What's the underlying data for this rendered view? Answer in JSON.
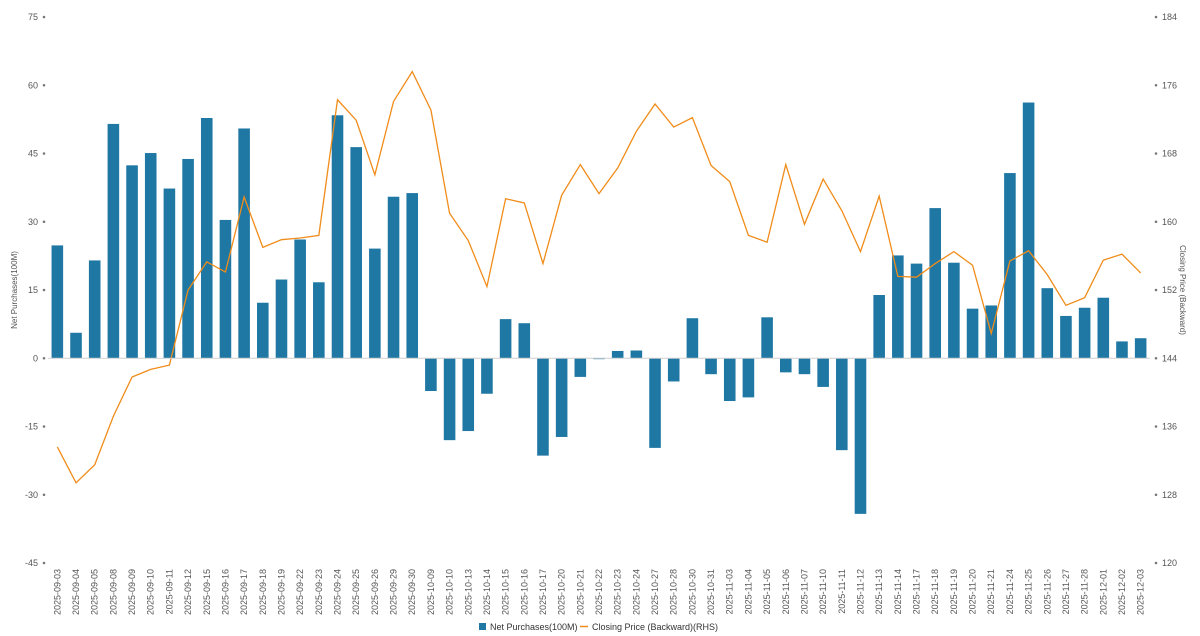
{
  "chart_data": {
    "type": "bar+line",
    "title": "",
    "ylabel_left": "Net Purchases(100M)",
    "ylabel_right": "Closing Price (Backward)",
    "ylim_left": [
      -45,
      75
    ],
    "yticks_left": [
      -45,
      -30,
      -15,
      0,
      15,
      30,
      45,
      60,
      75
    ],
    "ylim_right": [
      120,
      184
    ],
    "yticks_right": [
      120,
      128,
      136,
      144,
      152,
      160,
      168,
      176,
      184
    ],
    "categories": [
      "2025-09-03",
      "2025-09-04",
      "2025-09-05",
      "2025-09-08",
      "2025-09-09",
      "2025-09-10",
      "2025-09-11",
      "2025-09-12",
      "2025-09-15",
      "2025-09-16",
      "2025-09-17",
      "2025-09-18",
      "2025-09-19",
      "2025-09-22",
      "2025-09-23",
      "2025-09-24",
      "2025-09-25",
      "2025-09-26",
      "2025-09-29",
      "2025-09-30",
      "2025-10-09",
      "2025-10-10",
      "2025-10-13",
      "2025-10-14",
      "2025-10-15",
      "2025-10-16",
      "2025-10-17",
      "2025-10-20",
      "2025-10-21",
      "2025-10-22",
      "2025-10-23",
      "2025-10-24",
      "2025-10-27",
      "2025-10-28",
      "2025-10-30",
      "2025-10-31",
      "2025-11-03",
      "2025-11-04",
      "2025-11-05",
      "2025-11-06",
      "2025-11-07",
      "2025-11-10",
      "2025-11-11",
      "2025-11-12",
      "2025-11-13",
      "2025-11-14",
      "2025-11-17",
      "2025-11-18",
      "2025-11-19",
      "2025-11-20",
      "2025-11-21",
      "2025-11-24",
      "2025-11-25",
      "2025-11-26",
      "2025-11-27",
      "2025-11-28",
      "2025-12-01",
      "2025-12-02",
      "2025-12-03"
    ],
    "series": [
      {
        "name": "Net Purchases(100M)",
        "type": "bar",
        "axis": "left",
        "color": "#1f77a4",
        "values": [
          24.8,
          5.6,
          21.5,
          51.5,
          42.4,
          45.1,
          37.3,
          43.8,
          52.8,
          30.4,
          50.5,
          12.2,
          17.3,
          26.1,
          16.7,
          53.4,
          46.4,
          24.1,
          35.5,
          36.3,
          -7.2,
          -18.0,
          -16.0,
          -7.8,
          8.6,
          7.7,
          -21.4,
          -17.3,
          -4.1,
          -0.2,
          1.6,
          1.7,
          -19.7,
          -5.1,
          8.8,
          -3.5,
          -9.4,
          -8.6,
          9.0,
          -3.1,
          -3.5,
          -6.3,
          -20.2,
          -34.2,
          13.9,
          22.6,
          20.8,
          33.0,
          21.0,
          10.9,
          11.6,
          40.7,
          56.2,
          15.4,
          9.3,
          11.1,
          13.3,
          3.7,
          4.4
        ]
      },
      {
        "name": "Closing Price (Backward)(RHS)",
        "type": "line",
        "axis": "right",
        "color": "#f08c1a",
        "values": [
          133.6,
          129.4,
          131.5,
          137.2,
          141.8,
          142.7,
          143.2,
          152.0,
          155.3,
          154.1,
          162.9,
          157.0,
          157.9,
          158.1,
          158.4,
          174.3,
          171.9,
          165.5,
          174.1,
          177.6,
          173.1,
          161.0,
          157.8,
          152.4,
          162.7,
          162.2,
          155.1,
          163.1,
          166.7,
          163.3,
          166.3,
          170.6,
          173.8,
          171.1,
          172.2,
          166.6,
          164.7,
          158.4,
          157.6,
          166.7,
          159.7,
          165.0,
          161.3,
          156.5,
          163.0,
          153.6,
          153.5,
          155.1,
          156.5,
          154.9,
          146.9,
          155.4,
          156.6,
          153.8,
          150.2,
          151.1,
          155.5,
          156.2,
          154.0
        ]
      }
    ],
    "legend": [
      "Net Purchases(100M)",
      "Closing Price (Backward)(RHS)"
    ],
    "legend_position": "bottom-center",
    "grid": false
  }
}
